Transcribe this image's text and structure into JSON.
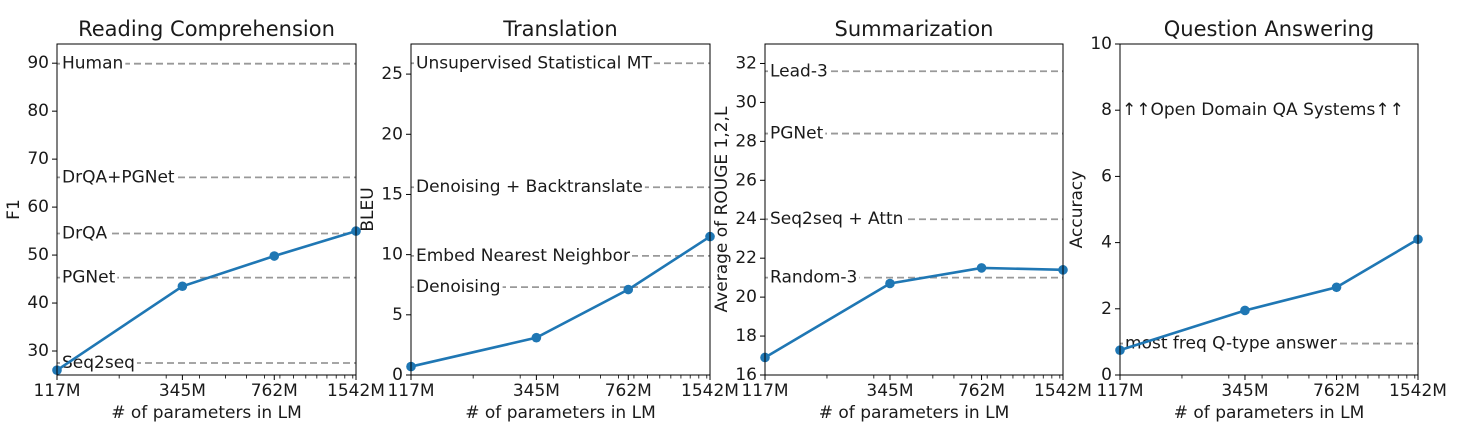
{
  "chart_data": [
    {
      "type": "line",
      "title": "Reading Comprehension",
      "xlabel": "# of parameters in LM",
      "ylabel": "F1",
      "x_scale": "log",
      "x": [
        117,
        345,
        762,
        1542
      ],
      "xtick_labels": [
        "117M",
        "345M",
        "762M",
        "1542M"
      ],
      "ylim": [
        25,
        94
      ],
      "yticks": [
        30,
        40,
        50,
        60,
        70,
        80,
        90
      ],
      "series": [
        {
          "values": [
            26.0,
            43.5,
            49.8,
            55.0
          ],
          "color": "#1f77b4"
        }
      ],
      "baselines": [
        {
          "label": "Human",
          "value": 89.9
        },
        {
          "label": "DrQA+PGNet",
          "value": 66.2
        },
        {
          "label": "DrQA",
          "value": 54.5
        },
        {
          "label": "PGNet",
          "value": 45.3
        },
        {
          "label": "Seq2seq",
          "value": 27.5
        }
      ]
    },
    {
      "type": "line",
      "title": "Translation",
      "xlabel": "# of parameters in LM",
      "ylabel": "BLEU",
      "x_scale": "log",
      "x": [
        117,
        345,
        762,
        1542
      ],
      "xtick_labels": [
        "117M",
        "345M",
        "762M",
        "1542M"
      ],
      "ylim": [
        0,
        27.5
      ],
      "yticks": [
        0,
        5,
        10,
        15,
        20,
        25
      ],
      "series": [
        {
          "values": [
            0.7,
            3.1,
            7.1,
            11.5
          ],
          "color": "#1f77b4"
        }
      ],
      "baselines": [
        {
          "label": "Unsupervised Statistical MT",
          "value": 25.9
        },
        {
          "label": "Denoising + Backtranslate",
          "value": 15.6
        },
        {
          "label": "Embed Nearest Neighbor",
          "value": 9.9
        },
        {
          "label": "Denoising",
          "value": 7.3
        }
      ]
    },
    {
      "type": "line",
      "title": "Summarization",
      "xlabel": "# of parameters in LM",
      "ylabel": "Average of ROUGE 1,2,L",
      "x_scale": "log",
      "x": [
        117,
        345,
        762,
        1542
      ],
      "xtick_labels": [
        "117M",
        "345M",
        "762M",
        "1542M"
      ],
      "ylim": [
        16,
        33
      ],
      "yticks": [
        16,
        18,
        20,
        22,
        24,
        26,
        28,
        30,
        32
      ],
      "series": [
        {
          "values": [
            16.9,
            20.7,
            21.5,
            21.4
          ],
          "color": "#1f77b4"
        }
      ],
      "baselines": [
        {
          "label": "Lead-3",
          "value": 31.6
        },
        {
          "label": "PGNet",
          "value": 28.4
        },
        {
          "label": "Seq2seq + Attn",
          "value": 24.0
        },
        {
          "label": "Random-3",
          "value": 21.0
        }
      ]
    },
    {
      "type": "line",
      "title": "Question Answering",
      "xlabel": "# of parameters in LM",
      "ylabel": "Accuracy",
      "x_scale": "log",
      "x": [
        117,
        345,
        762,
        1542
      ],
      "xtick_labels": [
        "117M",
        "345M",
        "762M",
        "1542M"
      ],
      "ylim": [
        0,
        10
      ],
      "yticks": [
        0,
        2,
        4,
        6,
        8,
        10
      ],
      "series": [
        {
          "values": [
            0.75,
            1.95,
            2.65,
            4.1
          ],
          "color": "#1f77b4"
        }
      ],
      "baselines": [
        {
          "label": "most freq Q-type answer",
          "value": 0.95
        }
      ],
      "annotations": [
        {
          "text": "↑↑Open Domain QA Systems↑↑",
          "value": 8.0
        }
      ]
    }
  ]
}
